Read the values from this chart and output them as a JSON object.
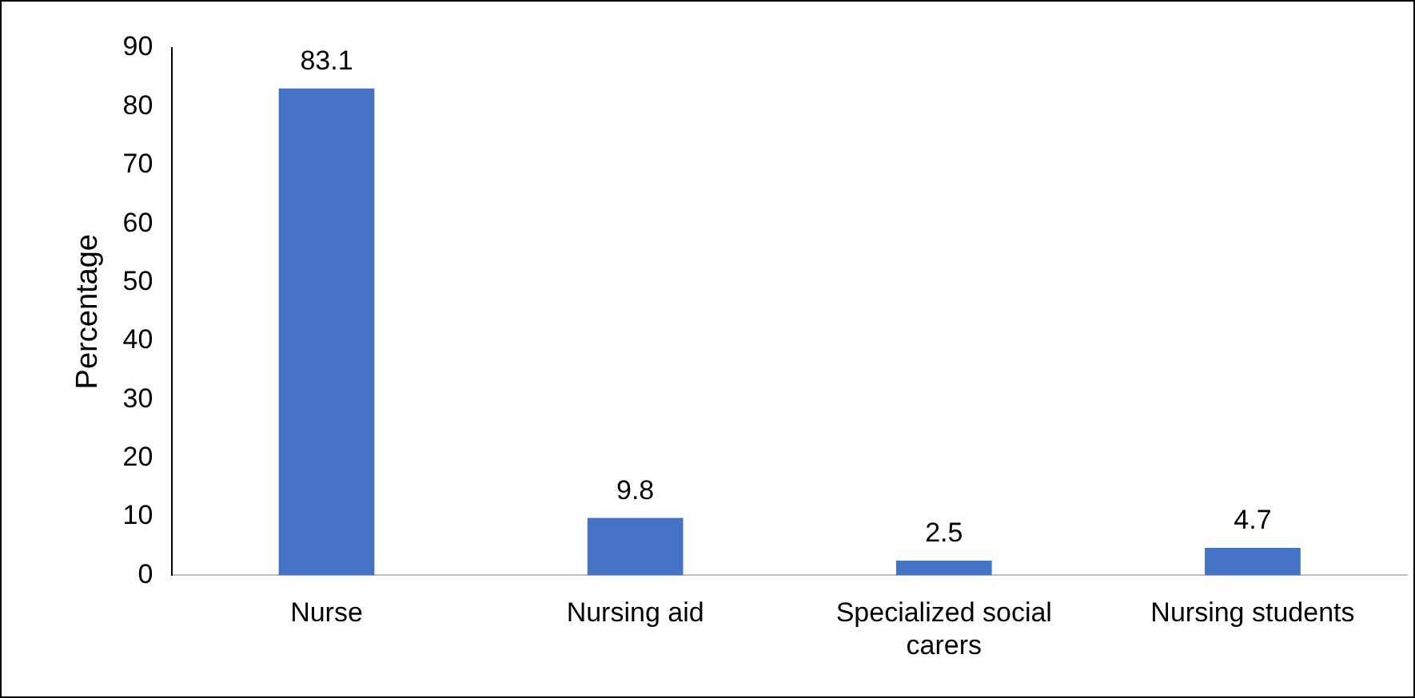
{
  "chart_data": {
    "type": "bar",
    "ylabel": "Percentage",
    "categories": [
      "Nurse",
      "Nursing aid",
      "Specialized social carers",
      "Nursing students"
    ],
    "values": [
      83.1,
      9.8,
      2.5,
      4.7
    ],
    "color": "#4472c4",
    "ylim": [
      0,
      90
    ],
    "yticks": [
      0,
      10,
      20,
      30,
      40,
      50,
      60,
      70,
      80,
      90
    ],
    "grid": false,
    "data_labels": true
  }
}
